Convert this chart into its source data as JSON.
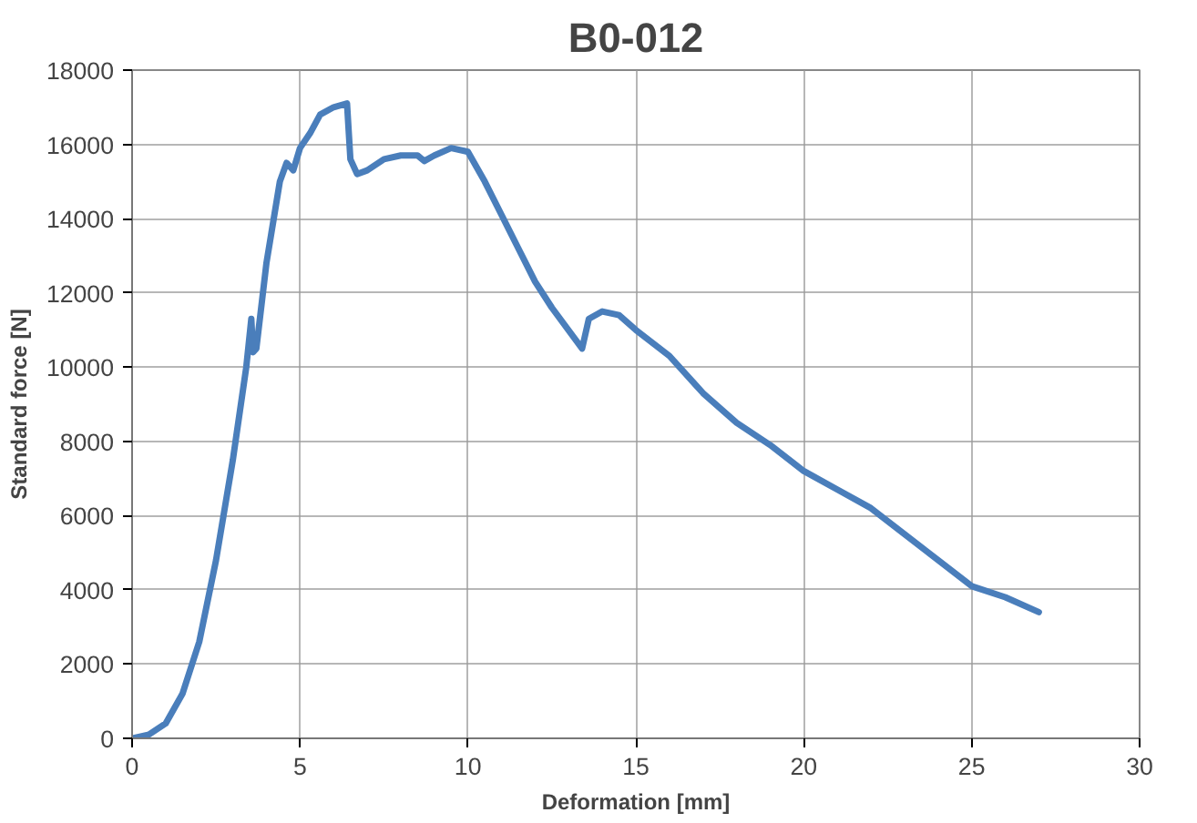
{
  "chart_data": {
    "type": "line",
    "title": "B0-012",
    "xlabel": "Deformation [mm]",
    "ylabel": "Standard force [N]",
    "xlim": [
      0,
      30
    ],
    "xticks": [
      0,
      5,
      10,
      15,
      20,
      25,
      30
    ],
    "ylim": [
      0,
      18000
    ],
    "yticks": [
      0,
      2000,
      4000,
      6000,
      8000,
      10000,
      12000,
      14000,
      16000,
      18000
    ],
    "grid": true,
    "marker": "none",
    "line_style": "solid",
    "series": [
      {
        "color": "#4a7ebb",
        "x": [
          0,
          0.5,
          1,
          1.5,
          2,
          2.5,
          3,
          3.4,
          3.55,
          3.6,
          3.7,
          4,
          4.4,
          4.6,
          4.8,
          5,
          5.3,
          5.6,
          6,
          6.4,
          6.5,
          6.7,
          7,
          7.5,
          8,
          8.5,
          8.7,
          9,
          9.5,
          10,
          10.5,
          11,
          11.5,
          12,
          12.5,
          13.4,
          13.6,
          14,
          14.5,
          15,
          16,
          17,
          18,
          19,
          20,
          21,
          22,
          23,
          24,
          25,
          26,
          27
        ],
        "values": [
          0,
          100,
          400,
          1200,
          2600,
          4800,
          7500,
          10000,
          11300,
          10400,
          10500,
          12800,
          15000,
          15500,
          15300,
          15900,
          16300,
          16800,
          17000,
          17100,
          15600,
          15200,
          15300,
          15600,
          15700,
          15700,
          15550,
          15700,
          15900,
          15800,
          15000,
          14100,
          13200,
          12300,
          11600,
          10500,
          11300,
          11500,
          11400,
          11000,
          10300,
          9300,
          8500,
          7900,
          7200,
          6700,
          6200,
          5500,
          4800,
          4100,
          3800,
          3400
        ]
      }
    ]
  }
}
